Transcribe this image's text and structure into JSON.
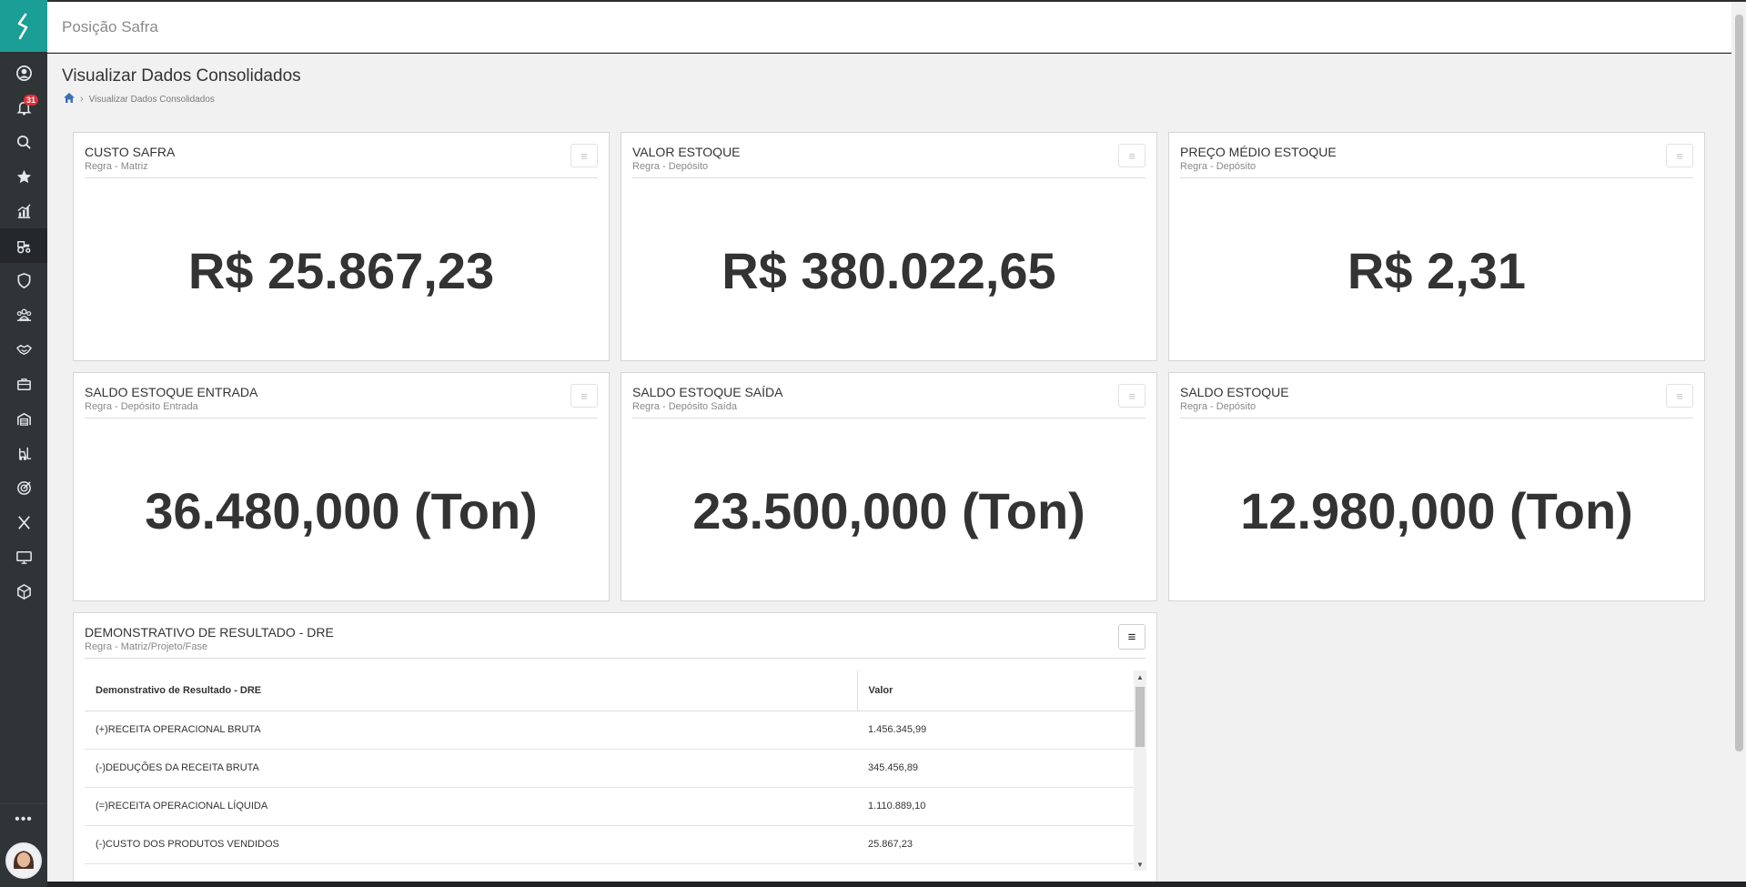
{
  "app": {
    "title": "Posição Safra"
  },
  "colors": {
    "accent": "#1b9e96",
    "sidebar": "#2f3437",
    "badge": "#e0303a"
  },
  "sidebar": {
    "logo_icon": "brand-s-logo-icon",
    "notification_count": "31",
    "items": [
      {
        "name": "user-circle-icon"
      },
      {
        "name": "bell-icon"
      },
      {
        "name": "search-icon"
      },
      {
        "name": "star-icon"
      },
      {
        "name": "chart-icon"
      },
      {
        "name": "tractor-icon"
      },
      {
        "name": "shield-icon"
      },
      {
        "name": "group-icon"
      },
      {
        "name": "handshake-icon"
      },
      {
        "name": "briefcase-icon"
      },
      {
        "name": "silo-icon"
      },
      {
        "name": "forklift-icon"
      },
      {
        "name": "target-icon"
      },
      {
        "name": "x-icon"
      },
      {
        "name": "monitor-icon"
      },
      {
        "name": "cube-icon"
      }
    ],
    "more_label": "•••"
  },
  "page": {
    "title": "Visualizar Dados Consolidados",
    "breadcrumb": {
      "current": "Visualizar Dados Consolidados"
    }
  },
  "cards": [
    {
      "title": "CUSTO SAFRA",
      "subtitle": "Regra - Matriz",
      "value": "R$ 25.867,23"
    },
    {
      "title": "VALOR ESTOQUE",
      "subtitle": "Regra - Depósito",
      "value": "R$ 380.022,65"
    },
    {
      "title": "PREÇO MÉDIO ESTOQUE",
      "subtitle": "Regra - Depósito",
      "value": "R$ 2,31"
    },
    {
      "title": "SALDO ESTOQUE ENTRADA",
      "subtitle": "Regra - Depósito Entrada",
      "value": "36.480,000 (Ton)"
    },
    {
      "title": "SALDO ESTOQUE SAÍDA",
      "subtitle": "Regra - Depósito Saída",
      "value": "23.500,000 (Ton)"
    },
    {
      "title": "SALDO ESTOQUE",
      "subtitle": "Regra - Depósito",
      "value": "12.980,000 (Ton)"
    }
  ],
  "dre": {
    "title": "DEMONSTRATIVO DE RESULTADO - DRE",
    "subtitle": "Regra - Matriz/Projeto/Fase",
    "columns": [
      "Demonstrativo de Resultado - DRE",
      "Valor"
    ],
    "rows": [
      {
        "label": "(+)RECEITA OPERACIONAL BRUTA",
        "value": "1.456.345,99"
      },
      {
        "label": "(-)DEDUÇÕES DA RECEITA BRUTA",
        "value": "345.456,89"
      },
      {
        "label": "(=)RECEITA OPERACIONAL LÍQUIDA",
        "value": "1.110.889,10"
      },
      {
        "label": "(-)CUSTO DOS PRODUTOS VENDIDOS",
        "value": "25.867,23"
      }
    ]
  }
}
